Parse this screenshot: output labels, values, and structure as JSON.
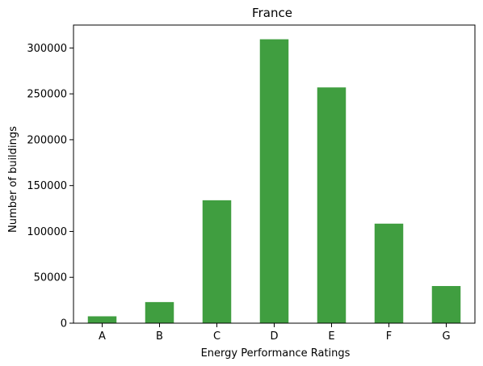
{
  "chart_data": {
    "type": "bar",
    "title": "France",
    "xlabel": "Energy Performance Ratings",
    "ylabel": "Number of buildings",
    "categories": [
      "A",
      "B",
      "C",
      "D",
      "E",
      "F",
      "G"
    ],
    "values": [
      7500,
      23000,
      134000,
      309500,
      257000,
      108500,
      40500
    ],
    "ylim": [
      0,
      325000
    ],
    "yticks": [
      0,
      50000,
      100000,
      150000,
      200000,
      250000,
      300000
    ],
    "ytick_labels": [
      "0",
      "50000",
      "100000",
      "150000",
      "200000",
      "250000",
      "300000"
    ],
    "bar_color": "#409e40",
    "grid": false,
    "legend": "none"
  }
}
